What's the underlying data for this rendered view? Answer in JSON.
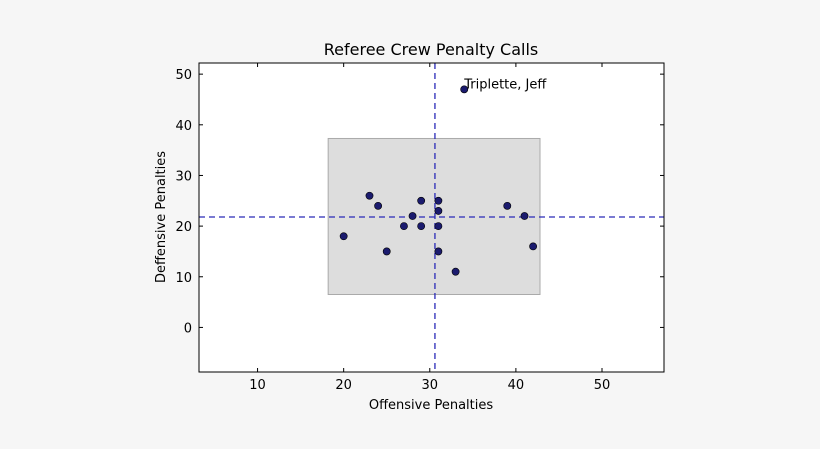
{
  "chart_data": {
    "type": "scatter",
    "title": "Referee Crew Penalty Calls",
    "xlabel": "Offensive Penalties",
    "ylabel": "Deffensive Penalties",
    "xlim": [
      3.2,
      57.2
    ],
    "ylim": [
      -8.8,
      52.2
    ],
    "xticks": [
      10,
      20,
      30,
      40,
      50
    ],
    "yticks": [
      0,
      10,
      20,
      30,
      40,
      50
    ],
    "grid": false,
    "colors": {
      "point": "#1b1b6e",
      "mean_line": "#2a2ab8",
      "band_fill": "#dddddd",
      "band_edge": "#aaaaaa"
    },
    "points": [
      {
        "x": 20,
        "y": 18
      },
      {
        "x": 23,
        "y": 26
      },
      {
        "x": 24,
        "y": 24
      },
      {
        "x": 25,
        "y": 15
      },
      {
        "x": 27,
        "y": 20
      },
      {
        "x": 28,
        "y": 22
      },
      {
        "x": 29,
        "y": 25
      },
      {
        "x": 29,
        "y": 20
      },
      {
        "x": 31,
        "y": 25
      },
      {
        "x": 31,
        "y": 23
      },
      {
        "x": 31,
        "y": 20
      },
      {
        "x": 31,
        "y": 15
      },
      {
        "x": 33,
        "y": 11
      },
      {
        "x": 34,
        "y": 47
      },
      {
        "x": 39,
        "y": 24
      },
      {
        "x": 41,
        "y": 22
      },
      {
        "x": 42,
        "y": 16
      }
    ],
    "mean_x": 30.6,
    "mean_y": 21.8,
    "band": {
      "x": [
        18.2,
        42.8
      ],
      "y": [
        6.5,
        37.3
      ]
    },
    "annotations": [
      {
        "text": "Triplette, Jeff",
        "x": 34,
        "y": 47
      }
    ]
  }
}
